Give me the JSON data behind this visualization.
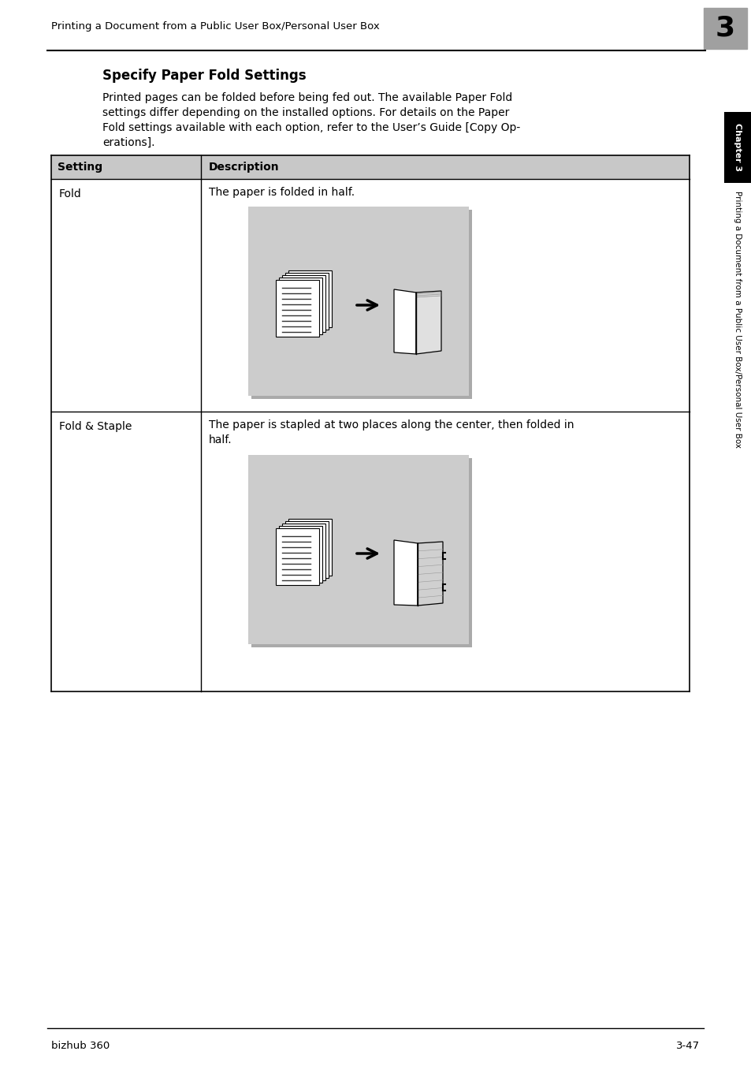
{
  "header_text": "Printing a Document from a Public User Box/Personal User Box",
  "chapter_num": "3",
  "chapter_box_color": "#a0a0a0",
  "title": "Specify Paper Fold Settings",
  "body_text": "Printed pages can be folded before being fed out. The available Paper Fold\nsettings differ depending on the installed options. For details on the Paper\nFold settings available with each option, refer to the User’s Guide [Copy Op-\nerations].",
  "table_header_bg": "#c8c8c8",
  "table_header_setting": "Setting",
  "table_header_description": "Description",
  "row1_setting": "Fold",
  "row1_description": "The paper is folded in half.",
  "row2_setting": "Fold & Staple",
  "row2_description": "The paper is stapled at two places along the center, then folded in\nhalf.",
  "image_bg": "#cccccc",
  "footer_left": "bizhub 360",
  "footer_right": "3-47",
  "sidebar_text": "Printing a Document from a Public User Box/Personal User Box",
  "sidebar_chapter": "Chapter 3",
  "sidebar_chapter_bg": "#000000",
  "sidebar_chapter_color": "#ffffff",
  "sidebar_bg": "#ffffff",
  "bg_color": "#ffffff",
  "text_color": "#000000"
}
